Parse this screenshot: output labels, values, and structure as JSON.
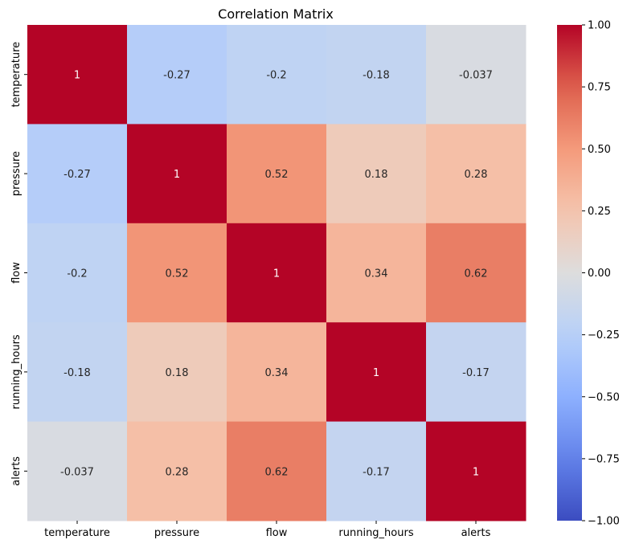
{
  "chart_data": {
    "type": "heatmap",
    "title": "Correlation Matrix",
    "xlabel": "",
    "ylabel": "",
    "x_categories": [
      "temperature",
      "pressure",
      "flow",
      "running_hours",
      "alerts"
    ],
    "y_categories": [
      "temperature",
      "pressure",
      "flow",
      "running_hours",
      "alerts"
    ],
    "values": [
      [
        1,
        -0.27,
        -0.2,
        -0.18,
        -0.037
      ],
      [
        -0.27,
        1,
        0.52,
        0.18,
        0.28
      ],
      [
        -0.2,
        0.52,
        1,
        0.34,
        0.62
      ],
      [
        -0.18,
        0.18,
        0.34,
        1,
        -0.17
      ],
      [
        -0.037,
        0.28,
        0.62,
        -0.17,
        1
      ]
    ],
    "annotations": [
      [
        "1",
        "-0.27",
        "-0.2",
        "-0.18",
        "-0.037"
      ],
      [
        "-0.27",
        "1",
        "0.52",
        "0.18",
        "0.28"
      ],
      [
        "-0.2",
        "0.52",
        "1",
        "0.34",
        "0.62"
      ],
      [
        "-0.18",
        "0.18",
        "0.34",
        "1",
        "-0.17"
      ],
      [
        "-0.037",
        "0.28",
        "0.62",
        "-0.17",
        "1"
      ]
    ],
    "colormap": "coolwarm",
    "vmin": -1.0,
    "vmax": 1.0,
    "colorbar_ticks": [
      "1.00",
      "0.75",
      "0.50",
      "0.25",
      "0.00",
      "−0.25",
      "−0.50",
      "−0.75",
      "−1.00"
    ],
    "colorbar_tick_values": [
      1.0,
      0.75,
      0.5,
      0.25,
      0.0,
      -0.25,
      -0.5,
      -0.75,
      -1.0
    ]
  }
}
